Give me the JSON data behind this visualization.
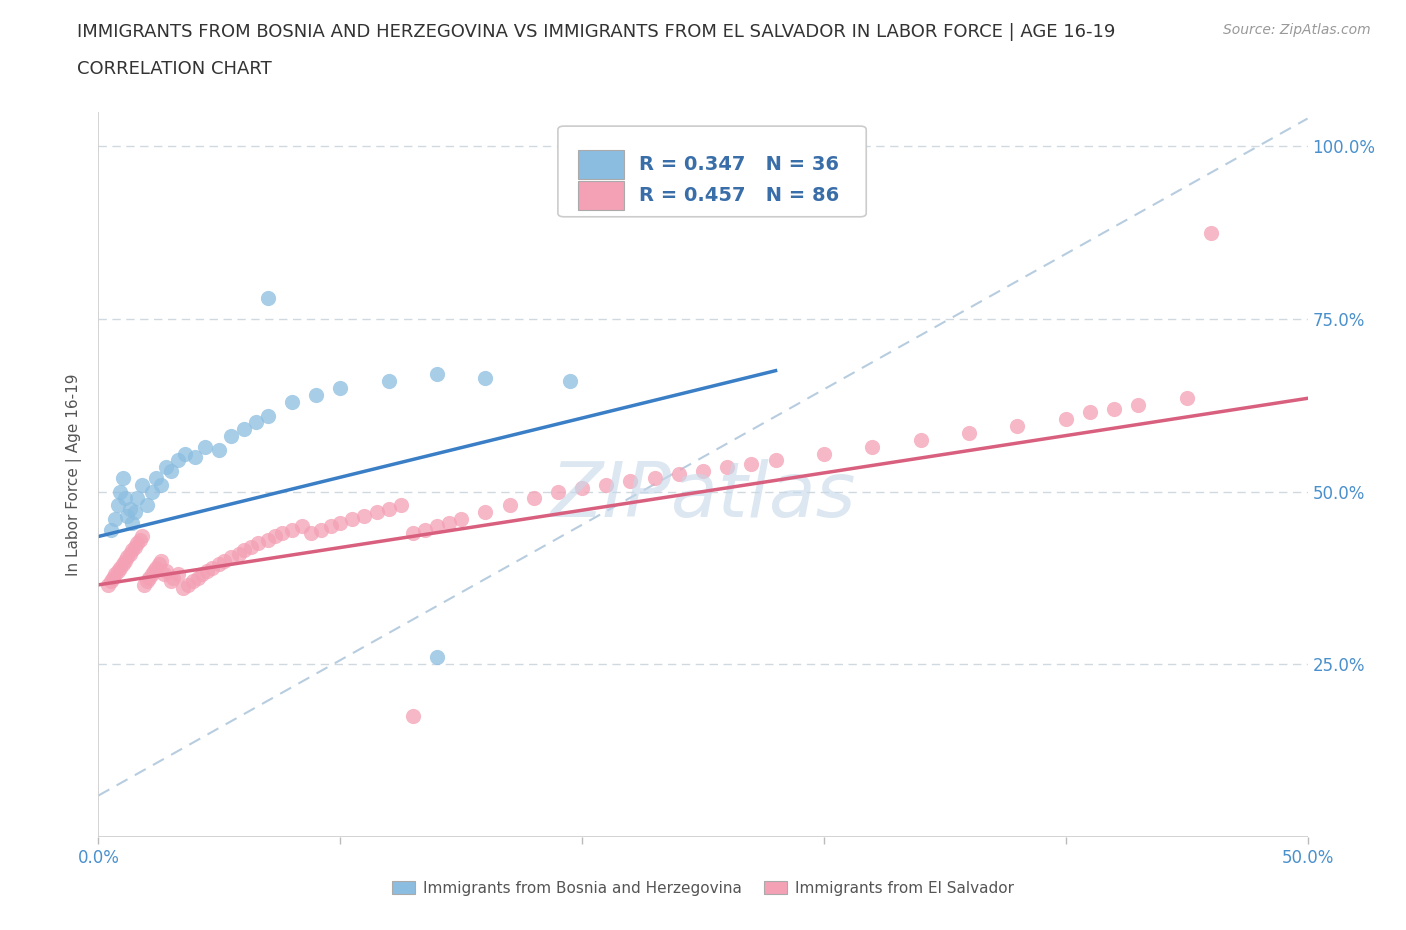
{
  "title_line1": "IMMIGRANTS FROM BOSNIA AND HERZEGOVINA VS IMMIGRANTS FROM EL SALVADOR IN LABOR FORCE | AGE 16-19",
  "title_line2": "CORRELATION CHART",
  "source_text": "Source: ZipAtlas.com",
  "ylabel": "In Labor Force | Age 16-19",
  "xlim": [
    0.0,
    0.5
  ],
  "ylim": [
    0.0,
    1.05
  ],
  "ytick_positions": [
    0.25,
    0.5,
    0.75,
    1.0
  ],
  "ytick_labels": [
    "25.0%",
    "50.0%",
    "75.0%",
    "100.0%"
  ],
  "xtick_positions": [
    0.0,
    0.1,
    0.2,
    0.3,
    0.4,
    0.5
  ],
  "xtick_labels": [
    "0.0%",
    "",
    "",
    "",
    "",
    "50.0%"
  ],
  "bosnia_color": "#8bbde0",
  "el_salvador_color": "#f4a0b5",
  "bosnia_line_color": "#3a7ec6",
  "el_salvador_line_color": "#d95f7f",
  "dash_line_color": "#b0c8dc",
  "watermark_color": "#c5d8ea",
  "grid_color": "#d0d8e0",
  "background_color": "#ffffff",
  "axis_label_color": "#4a90cc",
  "legend_R_color": "#3a6ea8",
  "R_bosnia": 0.347,
  "N_bosnia": 36,
  "R_el_salvador": 0.457,
  "N_el_salvador": 86,
  "bosnia_trendline": [
    0.0,
    0.435,
    0.28,
    0.675
  ],
  "el_salvador_trendline": [
    0.0,
    0.365,
    0.5,
    0.635
  ],
  "dash_line": [
    0.0,
    0.06,
    0.5,
    1.04
  ],
  "bosnia_scatter_x": [
    0.005,
    0.007,
    0.008,
    0.009,
    0.01,
    0.011,
    0.012,
    0.013,
    0.014,
    0.015,
    0.016,
    0.018,
    0.02,
    0.022,
    0.024,
    0.026,
    0.028,
    0.03,
    0.033,
    0.036,
    0.04,
    0.044,
    0.05,
    0.055,
    0.06,
    0.065,
    0.07,
    0.08,
    0.09,
    0.1,
    0.12,
    0.14,
    0.16,
    0.195,
    0.07,
    0.14
  ],
  "bosnia_scatter_y": [
    0.445,
    0.46,
    0.48,
    0.5,
    0.52,
    0.49,
    0.465,
    0.475,
    0.455,
    0.47,
    0.49,
    0.51,
    0.48,
    0.5,
    0.52,
    0.51,
    0.535,
    0.53,
    0.545,
    0.555,
    0.55,
    0.565,
    0.56,
    0.58,
    0.59,
    0.6,
    0.61,
    0.63,
    0.64,
    0.65,
    0.66,
    0.67,
    0.665,
    0.66,
    0.78,
    0.26
  ],
  "el_salvador_scatter_x": [
    0.004,
    0.005,
    0.006,
    0.007,
    0.008,
    0.009,
    0.01,
    0.011,
    0.012,
    0.013,
    0.014,
    0.015,
    0.016,
    0.017,
    0.018,
    0.019,
    0.02,
    0.021,
    0.022,
    0.023,
    0.024,
    0.025,
    0.026,
    0.027,
    0.028,
    0.03,
    0.031,
    0.033,
    0.035,
    0.037,
    0.039,
    0.041,
    0.043,
    0.045,
    0.047,
    0.05,
    0.052,
    0.055,
    0.058,
    0.06,
    0.063,
    0.066,
    0.07,
    0.073,
    0.076,
    0.08,
    0.084,
    0.088,
    0.092,
    0.096,
    0.1,
    0.105,
    0.11,
    0.115,
    0.12,
    0.125,
    0.13,
    0.135,
    0.14,
    0.145,
    0.15,
    0.16,
    0.17,
    0.18,
    0.19,
    0.2,
    0.21,
    0.22,
    0.23,
    0.24,
    0.25,
    0.26,
    0.27,
    0.28,
    0.3,
    0.32,
    0.34,
    0.36,
    0.38,
    0.4,
    0.41,
    0.42,
    0.43,
    0.45,
    0.46,
    0.13
  ],
  "el_salvador_scatter_y": [
    0.365,
    0.37,
    0.375,
    0.38,
    0.385,
    0.39,
    0.395,
    0.4,
    0.405,
    0.41,
    0.415,
    0.42,
    0.425,
    0.43,
    0.435,
    0.365,
    0.37,
    0.375,
    0.38,
    0.385,
    0.39,
    0.395,
    0.4,
    0.38,
    0.385,
    0.37,
    0.375,
    0.38,
    0.36,
    0.365,
    0.37,
    0.375,
    0.38,
    0.385,
    0.39,
    0.395,
    0.4,
    0.405,
    0.41,
    0.415,
    0.42,
    0.425,
    0.43,
    0.435,
    0.44,
    0.445,
    0.45,
    0.44,
    0.445,
    0.45,
    0.455,
    0.46,
    0.465,
    0.47,
    0.475,
    0.48,
    0.44,
    0.445,
    0.45,
    0.455,
    0.46,
    0.47,
    0.48,
    0.49,
    0.5,
    0.505,
    0.51,
    0.515,
    0.52,
    0.525,
    0.53,
    0.535,
    0.54,
    0.545,
    0.555,
    0.565,
    0.575,
    0.585,
    0.595,
    0.605,
    0.615,
    0.62,
    0.625,
    0.635,
    0.875,
    0.175
  ],
  "title_fontsize": 13,
  "source_fontsize": 10,
  "ylabel_fontsize": 11,
  "tick_fontsize": 12,
  "legend_fontsize": 14,
  "watermark_fontsize": 55
}
